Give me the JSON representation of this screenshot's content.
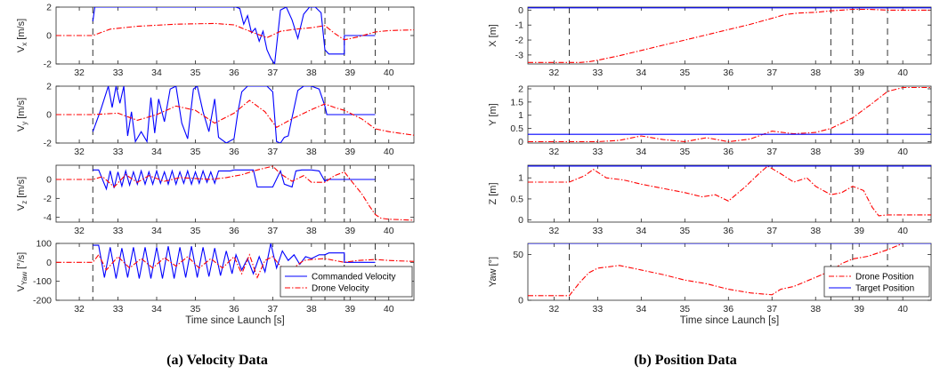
{
  "colors": {
    "commanded": "#0000ff",
    "drone": "#ff0000",
    "target": "#0000ff",
    "axis": "#262626",
    "event_line": "#333333"
  },
  "captions": {
    "velocity": "(a) Velocity Data",
    "position": "(b) Position Data"
  },
  "legends": {
    "velocity": [
      "Commanded Velocity",
      "Drone Velocity"
    ],
    "position": [
      "Drone Position",
      "Target Position"
    ]
  },
  "event_times": [
    32.35,
    38.35,
    38.85,
    39.65
  ],
  "chart_data": [
    {
      "type": "line",
      "id": "vx",
      "xlabel": "",
      "ylabel": "V_x [m/s]",
      "xlim": [
        31.4,
        40.65
      ],
      "ylim": [
        -2,
        2
      ],
      "xticks": [
        32,
        33,
        34,
        35,
        36,
        37,
        38,
        39,
        40
      ],
      "yticks": [
        -2,
        0,
        2
      ],
      "series": [
        {
          "name": "Commanded Velocity",
          "style": "solid",
          "x": [
            32.35,
            32.4,
            32.45,
            32.5,
            36.05,
            36.15,
            36.25,
            36.35,
            36.45,
            36.55,
            36.65,
            36.75,
            36.85,
            36.95,
            37.05,
            37.2,
            37.35,
            37.5,
            37.65,
            37.8,
            37.95,
            38.1,
            38.25,
            38.35,
            38.45,
            38.85,
            38.85,
            39.65
          ],
          "y": [
            1.0,
            2.0,
            2.0,
            2.0,
            2.0,
            1.9,
            0.8,
            1.4,
            0.2,
            0.5,
            -0.4,
            0.3,
            -1.0,
            -1.6,
            -2.0,
            1.8,
            2.0,
            1.1,
            -0.2,
            1.5,
            2.0,
            2.0,
            1.6,
            -1.0,
            -1.3,
            -1.3,
            0,
            0
          ]
        },
        {
          "name": "Drone Velocity",
          "style": "dashdot",
          "x": [
            31.4,
            32.35,
            32.8,
            33.5,
            34.5,
            35.5,
            36.0,
            36.5,
            36.85,
            37.2,
            37.6,
            38.0,
            38.35,
            38.6,
            38.85,
            39.2,
            39.65,
            40.0,
            40.65
          ],
          "y": [
            0,
            0,
            0.45,
            0.65,
            0.8,
            0.85,
            0.75,
            0.2,
            -0.15,
            0.3,
            0.45,
            0.55,
            0.7,
            0.15,
            -0.3,
            -0.1,
            0.25,
            0.35,
            0.4
          ]
        }
      ]
    },
    {
      "type": "line",
      "id": "vy",
      "xlabel": "",
      "ylabel": "V_y [m/s]",
      "xlim": [
        31.4,
        40.65
      ],
      "ylim": [
        -2,
        2
      ],
      "xticks": [
        32,
        33,
        34,
        35,
        36,
        37,
        38,
        39,
        40
      ],
      "yticks": [
        -2,
        0,
        2
      ],
      "series": [
        {
          "name": "Commanded Velocity",
          "style": "solid",
          "x": [
            32.35,
            32.55,
            32.75,
            32.85,
            32.95,
            33.05,
            33.15,
            33.25,
            33.35,
            33.45,
            33.6,
            33.75,
            33.85,
            33.95,
            34.05,
            34.2,
            34.35,
            34.5,
            34.65,
            34.8,
            34.95,
            35.05,
            35.2,
            35.35,
            35.5,
            35.6,
            35.8,
            36.0,
            36.1,
            36.2,
            36.35,
            36.6,
            36.85,
            37.0,
            37.1,
            37.2,
            37.3,
            37.4,
            37.5,
            37.65,
            37.8,
            38.0,
            38.2,
            38.35,
            38.4,
            38.85,
            38.85,
            39.65
          ],
          "y": [
            -1.2,
            0.3,
            2.0,
            0.5,
            2.0,
            0.8,
            2.0,
            -1.5,
            0.2,
            -1.9,
            -1.2,
            -1.9,
            1.2,
            -1.3,
            1.1,
            -0.5,
            1.8,
            2.0,
            -0.6,
            -1.7,
            1.8,
            2.0,
            0.2,
            -1.2,
            1.1,
            -1.6,
            -2.0,
            -1.7,
            0.2,
            1.6,
            2.0,
            2.0,
            2.0,
            1.6,
            -1.9,
            -2.0,
            -1.6,
            -1.5,
            -0.2,
            1.7,
            2.0,
            2.0,
            1.8,
            0.6,
            0.0,
            0.0,
            0.0,
            0.0
          ]
        },
        {
          "name": "Drone Velocity",
          "style": "dashdot",
          "x": [
            31.4,
            32.35,
            33.0,
            33.5,
            34.0,
            34.5,
            35.0,
            35.5,
            36.0,
            36.4,
            36.8,
            37.1,
            37.5,
            38.0,
            38.35,
            38.6,
            38.85,
            39.3,
            39.65,
            40.0,
            40.65
          ],
          "y": [
            0,
            0,
            0.1,
            -0.4,
            0.0,
            0.6,
            0.3,
            -0.6,
            0.1,
            1.0,
            0.2,
            -0.9,
            -0.3,
            0.35,
            0.75,
            0.5,
            0.3,
            -0.3,
            -1.0,
            -1.2,
            -1.45
          ]
        }
      ]
    },
    {
      "type": "line",
      "id": "vz",
      "xlabel": "",
      "ylabel": "V_z [m/s]",
      "xlim": [
        31.4,
        40.65
      ],
      "ylim": [
        -4.5,
        1.5
      ],
      "xticks": [
        32,
        33,
        34,
        35,
        36,
        37,
        38,
        39,
        40
      ],
      "yticks": [
        -4,
        -2,
        0
      ],
      "series": [
        {
          "name": "Commanded Velocity",
          "style": "solid",
          "x": [
            32.35,
            32.5,
            32.7,
            32.8,
            32.9,
            33.0,
            33.1,
            33.2,
            33.3,
            33.4,
            33.5,
            33.6,
            33.7,
            33.8,
            33.9,
            34.0,
            34.1,
            34.2,
            34.3,
            34.4,
            34.5,
            34.6,
            34.7,
            34.8,
            34.9,
            35.0,
            35.1,
            35.2,
            35.3,
            35.4,
            35.5,
            35.6,
            35.7,
            35.8,
            35.9,
            36.0,
            36.5,
            36.6,
            36.8,
            37.0,
            37.2,
            37.3,
            37.5,
            37.6,
            37.75,
            38.0,
            38.2,
            38.35,
            38.4,
            38.85,
            38.85,
            39.65
          ],
          "y": [
            1.0,
            1.0,
            -1.0,
            0.9,
            -0.9,
            0.8,
            -0.7,
            0.9,
            -0.6,
            0.8,
            -0.5,
            0.9,
            -0.5,
            0.8,
            -0.5,
            0.9,
            -0.4,
            0.8,
            -0.5,
            0.9,
            -0.5,
            0.8,
            -0.4,
            0.9,
            -0.5,
            0.8,
            -0.4,
            0.9,
            -0.3,
            0.8,
            -0.4,
            0.9,
            0.9,
            0.9,
            0.9,
            1.0,
            1.0,
            -0.8,
            -0.8,
            -0.8,
            0.9,
            -0.5,
            -0.8,
            0.9,
            1.0,
            1.0,
            0.9,
            -0.2,
            0.0,
            0.0,
            0.0,
            0.0
          ]
        },
        {
          "name": "Drone Velocity",
          "style": "dashdot",
          "x": [
            31.4,
            32.35,
            32.6,
            32.9,
            33.2,
            33.5,
            33.8,
            34.2,
            34.6,
            35.0,
            35.4,
            35.8,
            36.2,
            36.6,
            37.0,
            37.2,
            37.5,
            37.8,
            38.0,
            38.35,
            38.6,
            38.85,
            39.1,
            39.3,
            39.5,
            39.65,
            39.8,
            40.0,
            40.65
          ],
          "y": [
            0,
            0,
            0.3,
            -0.8,
            0.5,
            -0.3,
            0.4,
            -0.2,
            0.2,
            0.1,
            0.0,
            0.2,
            0.5,
            1.0,
            1.4,
            0.6,
            -0.2,
            0.4,
            -0.3,
            -0.3,
            0.4,
            0.8,
            -0.5,
            -1.5,
            -2.8,
            -3.7,
            -4.1,
            -4.2,
            -4.3
          ]
        }
      ]
    },
    {
      "type": "line",
      "id": "vyaw",
      "xlabel": "Time since Launch [s]",
      "ylabel": "V_Yaw [°/s]",
      "xlim": [
        31.4,
        40.65
      ],
      "ylim": [
        -200,
        100
      ],
      "xticks": [
        32,
        33,
        34,
        35,
        36,
        37,
        38,
        39,
        40
      ],
      "yticks": [
        -200,
        -100,
        0,
        100
      ],
      "legend": "bottom-right",
      "series": [
        {
          "name": "Commanded Velocity",
          "style": "solid",
          "x": [
            32.35,
            32.5,
            32.65,
            32.8,
            32.95,
            33.1,
            33.25,
            33.4,
            33.55,
            33.7,
            33.85,
            34.0,
            34.15,
            34.3,
            34.45,
            34.6,
            34.75,
            34.9,
            35.05,
            35.2,
            35.35,
            35.5,
            35.65,
            35.8,
            35.95,
            36.05,
            36.2,
            36.35,
            36.5,
            36.65,
            36.8,
            36.95,
            37.1,
            37.25,
            37.4,
            37.55,
            37.7,
            37.85,
            38.0,
            38.2,
            38.35,
            38.45,
            38.85,
            38.85,
            39.65
          ],
          "y": [
            90,
            90,
            -80,
            80,
            -85,
            75,
            -80,
            80,
            -85,
            80,
            -85,
            80,
            -85,
            85,
            -85,
            80,
            -80,
            85,
            -80,
            80,
            -75,
            75,
            -70,
            60,
            -60,
            40,
            -40,
            20,
            -60,
            30,
            -50,
            100,
            -30,
            60,
            10,
            40,
            -10,
            30,
            20,
            40,
            40,
            50,
            50,
            0,
            0
          ]
        },
        {
          "name": "Drone Velocity",
          "style": "dashdot",
          "x": [
            31.4,
            32.35,
            32.5,
            32.7,
            33.0,
            33.3,
            33.6,
            33.9,
            34.2,
            34.5,
            34.8,
            35.1,
            35.4,
            35.7,
            36.0,
            36.2,
            36.4,
            36.6,
            36.8,
            37.0,
            37.2,
            37.4,
            37.6,
            37.8,
            38.0,
            38.35,
            38.6,
            38.85,
            39.2,
            39.65,
            40.0,
            40.65
          ],
          "y": [
            0,
            0,
            40,
            -40,
            30,
            -30,
            20,
            -30,
            25,
            -20,
            30,
            -30,
            20,
            -30,
            30,
            -60,
            40,
            -80,
            10,
            30,
            -20,
            -40,
            -20,
            10,
            15,
            20,
            10,
            0,
            10,
            15,
            10,
            5
          ]
        }
      ]
    },
    {
      "type": "line",
      "id": "x",
      "xlabel": "",
      "ylabel": "X [m]",
      "xlim": [
        31.4,
        40.65
      ],
      "ylim": [
        -3.6,
        0.2
      ],
      "xticks": [
        32,
        33,
        34,
        35,
        36,
        37,
        38,
        39,
        40
      ],
      "yticks": [
        -3,
        -2,
        -1,
        0
      ],
      "series": [
        {
          "name": "Drone Position",
          "style": "dashdot",
          "x": [
            31.4,
            32.35,
            32.6,
            32.8,
            33.0,
            33.5,
            34.0,
            34.5,
            35.0,
            35.5,
            36.0,
            36.5,
            37.0,
            37.3,
            37.6,
            38.0,
            38.35,
            38.6,
            38.85,
            39.2,
            39.65,
            40.0,
            40.65
          ],
          "y": [
            -3.5,
            -3.5,
            -3.5,
            -3.45,
            -3.35,
            -3.05,
            -2.7,
            -2.35,
            -2.0,
            -1.65,
            -1.3,
            -0.95,
            -0.55,
            -0.3,
            -0.2,
            -0.15,
            -0.05,
            0.0,
            0.05,
            0.05,
            0.0,
            0.0,
            0.0
          ]
        },
        {
          "name": "Target Position",
          "style": "solid",
          "x": [
            31.4,
            40.65
          ],
          "y": [
            0.15,
            0.15
          ]
        }
      ]
    },
    {
      "type": "line",
      "id": "y",
      "xlabel": "",
      "ylabel": "Y [m]",
      "xlim": [
        31.4,
        40.65
      ],
      "ylim": [
        -0.05,
        2.1
      ],
      "xticks": [
        32,
        33,
        34,
        35,
        36,
        37,
        38,
        39,
        40
      ],
      "yticks": [
        0,
        0.5,
        1,
        1.5,
        2
      ],
      "series": [
        {
          "name": "Drone Position",
          "style": "dashdot",
          "x": [
            31.4,
            32.35,
            33.0,
            33.5,
            34.0,
            34.5,
            35.0,
            35.5,
            36.0,
            36.5,
            37.0,
            37.5,
            38.0,
            38.35,
            38.85,
            39.3,
            39.65,
            40.0,
            40.65
          ],
          "y": [
            0.0,
            0.0,
            0.0,
            0.05,
            0.22,
            0.08,
            0.0,
            0.15,
            0.0,
            0.1,
            0.4,
            0.3,
            0.35,
            0.5,
            0.9,
            1.45,
            1.9,
            2.05,
            2.05
          ]
        },
        {
          "name": "Target Position",
          "style": "solid",
          "x": [
            31.4,
            40.65
          ],
          "y": [
            0.28,
            0.28
          ]
        }
      ]
    },
    {
      "type": "line",
      "id": "z",
      "xlabel": "",
      "ylabel": "Z [m]",
      "xlim": [
        31.4,
        40.65
      ],
      "ylim": [
        -0.05,
        1.3
      ],
      "xticks": [
        32,
        33,
        34,
        35,
        36,
        37,
        38,
        39,
        40
      ],
      "yticks": [
        0,
        0.5,
        1
      ],
      "series": [
        {
          "name": "Drone Position",
          "style": "dashdot",
          "x": [
            31.4,
            32.35,
            32.7,
            32.9,
            33.2,
            33.6,
            34.0,
            34.5,
            35.0,
            35.4,
            35.7,
            36.0,
            36.4,
            36.7,
            36.9,
            37.2,
            37.5,
            37.8,
            38.0,
            38.35,
            38.6,
            38.85,
            39.1,
            39.3,
            39.45,
            39.65,
            40.0,
            40.65
          ],
          "y": [
            0.9,
            0.9,
            1.05,
            1.2,
            1.0,
            0.95,
            0.85,
            0.75,
            0.65,
            0.55,
            0.6,
            0.45,
            0.8,
            1.1,
            1.28,
            1.1,
            0.9,
            1.0,
            0.8,
            0.6,
            0.65,
            0.8,
            0.7,
            0.3,
            0.1,
            0.12,
            0.12,
            0.12
          ]
        },
        {
          "name": "Target Position",
          "style": "solid",
          "x": [
            31.4,
            40.65
          ],
          "y": [
            1.28,
            1.28
          ]
        }
      ]
    },
    {
      "type": "line",
      "id": "yaw",
      "xlabel": "Time since Launch [s]",
      "ylabel": "Yaw [°]",
      "xlim": [
        31.4,
        40.65
      ],
      "ylim": [
        0,
        62
      ],
      "xticks": [
        32,
        33,
        34,
        35,
        36,
        37,
        38,
        39,
        40
      ],
      "yticks": [
        0,
        50
      ],
      "legend": "bottom-right",
      "series": [
        {
          "name": "Drone Position",
          "style": "dashdot",
          "x": [
            31.4,
            32.35,
            32.6,
            32.8,
            33.0,
            33.5,
            34.0,
            34.5,
            35.0,
            35.5,
            36.0,
            36.5,
            37.0,
            37.2,
            37.5,
            38.0,
            38.35,
            38.6,
            38.85,
            39.2,
            39.65,
            40.0,
            40.65
          ],
          "y": [
            5,
            5,
            20,
            30,
            35,
            38,
            33,
            28,
            22,
            18,
            12,
            8,
            6,
            12,
            15,
            25,
            32,
            40,
            45,
            48,
            55,
            62,
            62
          ]
        },
        {
          "name": "Target Position",
          "style": "solid",
          "x": [
            31.4,
            40.65
          ],
          "y": [
            62,
            62
          ]
        }
      ]
    }
  ]
}
